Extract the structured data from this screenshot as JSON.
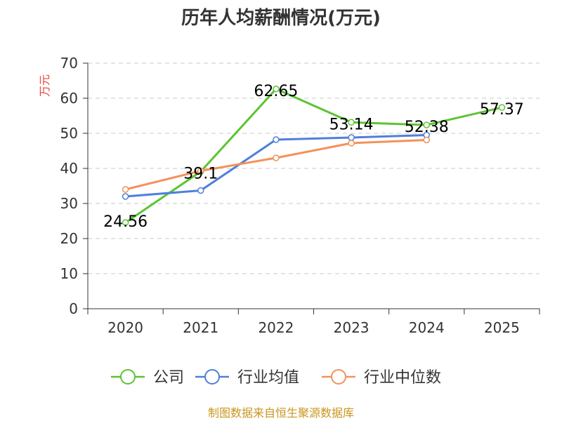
{
  "chart_data": {
    "type": "line",
    "title": "历年人均薪酬情况(万元)",
    "ylabel": "万元",
    "xlabel": "",
    "ylim": [
      0,
      70
    ],
    "yticks": [
      0,
      10,
      20,
      30,
      40,
      50,
      60,
      70
    ],
    "categories": [
      "2020",
      "2021",
      "2022",
      "2023",
      "2024",
      "2025"
    ],
    "grid": true,
    "legend_position": "bottom",
    "series": [
      {
        "name": "公司",
        "color": "#5cc431",
        "values": [
          24.56,
          39.1,
          62.65,
          53.14,
          52.38,
          57.37
        ],
        "labels": [
          "24.56",
          "39.1",
          "62.65",
          "53.14",
          "52.38",
          "57.37"
        ]
      },
      {
        "name": "行业均值",
        "color": "#4f7fdb",
        "values": [
          32.0,
          33.7,
          48.2,
          48.8,
          49.5,
          null
        ]
      },
      {
        "name": "行业中位数",
        "color": "#f4915a",
        "values": [
          34.0,
          39.3,
          43.0,
          47.2,
          48.1,
          null
        ]
      }
    ],
    "source": "制图数据来自恒生聚源数据库"
  }
}
